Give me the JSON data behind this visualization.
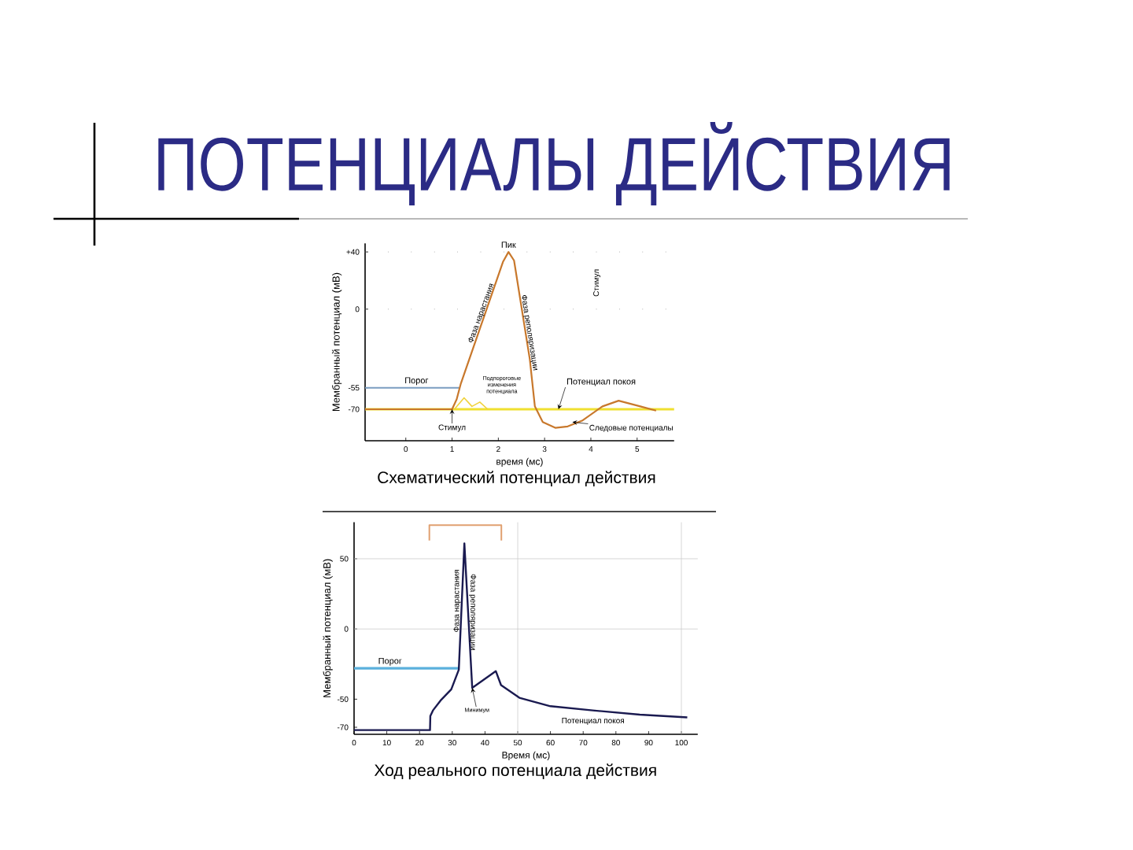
{
  "chart_data": [
    {
      "type": "other",
      "title": "ПОТЕНЦИАЛЫ ДЕЙСТВИЯ"
    },
    {
      "type": "line",
      "title": "Схематический потенциал действия",
      "xlabel": "время (мс)",
      "ylabel": "Мембранный потенциал (мВ)",
      "xlim": [
        -0.88,
        5.8
      ],
      "ylim": [
        -92,
        46
      ],
      "xticks": [
        0,
        1,
        2,
        3,
        4,
        5
      ],
      "yticks": [
        {
          "value": 40,
          "label": "+40"
        },
        0,
        -55,
        -70
      ],
      "series": [
        {
          "color": "#c8782c",
          "x": [
            -0.88,
            1.0,
            1.1,
            1.19,
            2.1,
            2.22,
            2.34,
            2.68,
            2.79,
            2.96,
            3.23,
            3.5,
            3.81,
            4.25,
            4.6,
            5.07,
            5.41
          ],
          "values": [
            -70,
            -70,
            -63,
            -52,
            33,
            40,
            34,
            -35,
            -68,
            -79,
            -83,
            -82,
            -78,
            -68,
            -64,
            -68,
            -71
          ]
        },
        {
          "color": "#f0d23c",
          "x": [
            1.05,
            1.26,
            1.43,
            1.6,
            1.77
          ],
          "values": [
            -70,
            -62,
            -68,
            -65,
            -70
          ]
        }
      ],
      "ref_lines": [
        {
          "axis": "y",
          "value": 40,
          "color": "#a0a0a0",
          "line_style": "dotted"
        },
        {
          "axis": "y",
          "value": 0,
          "color": "#a0a0a0",
          "line_style": "dotted"
        },
        {
          "axis": "y",
          "value": -55,
          "label": "Порог",
          "color": "#7a9cc0"
        },
        {
          "axis": "y",
          "value": -70,
          "label": "Потенциал покоя",
          "color": "#f0e030"
        }
      ],
      "annotations": [
        {
          "text": "Пик",
          "x": 2.22,
          "y": 40
        },
        {
          "text": "Фаза нарастания",
          "x": 1.73,
          "y": -4
        },
        {
          "text": "Фаза реполяризации",
          "x": 2.57,
          "y": -17
        },
        {
          "text": "Стимул",
          "x": 1.0,
          "y": -70
        },
        {
          "text": "Подпороговые изменения потенциала",
          "x": 1.43,
          "y": -68
        },
        {
          "text": "Следовые потенциалы",
          "x": 3.6,
          "y": -79
        },
        "Стимул"
      ]
    },
    {
      "type": "line",
      "title": "Ход реального потенциала действия",
      "xlabel": "Время (мс)",
      "ylabel": "Мембранный потенциал (мВ)",
      "xlim": [
        0,
        105
      ],
      "ylim": [
        -75,
        76
      ],
      "xticks": [
        0,
        10,
        20,
        30,
        40,
        50,
        60,
        70,
        80,
        90,
        100
      ],
      "yticks": [
        50,
        0,
        -50,
        -70
      ],
      "series": [
        {
          "color": "#1a1a50",
          "x": [
            0,
            23.2,
            23.3,
            24.1,
            26.4,
            29.7,
            32,
            33.7,
            36.1,
            43.3,
            44.9,
            50.5,
            60,
            72.9,
            87.3,
            101.8
          ],
          "values": [
            -72,
            -72,
            -62,
            -58,
            -51,
            -43,
            -29,
            61,
            -42,
            -30,
            -40,
            -49,
            -55,
            -58,
            -61,
            -63
          ]
        },
        {
          "color": "#e0a070",
          "x": [
            23,
            23,
            45,
            45
          ],
          "values": [
            63,
            74,
            74,
            63
          ]
        }
      ],
      "ref_lines": [
        {
          "axis": "y",
          "value": -28,
          "label": "Порог",
          "color": "#5ab0dc"
        },
        {
          "axis": "x",
          "value": 50,
          "color": "#cccccc"
        },
        {
          "axis": "x",
          "value": 100,
          "color": "#cccccc"
        },
        {
          "axis": "y",
          "value": 50,
          "color": "#cccccc"
        },
        {
          "axis": "y",
          "value": 0,
          "color": "#cccccc"
        }
      ],
      "annotations": [
        {
          "text": "Фаза нарастания",
          "x": 32.9,
          "y": 20
        },
        {
          "text": "Фаза реполяризации",
          "x": 34.8,
          "y": 12
        },
        {
          "text": "Минимум",
          "x": 36.1,
          "y": -42
        },
        {
          "text": "Потенциал покоя",
          "x": 73,
          "y": -58
        }
      ]
    }
  ]
}
